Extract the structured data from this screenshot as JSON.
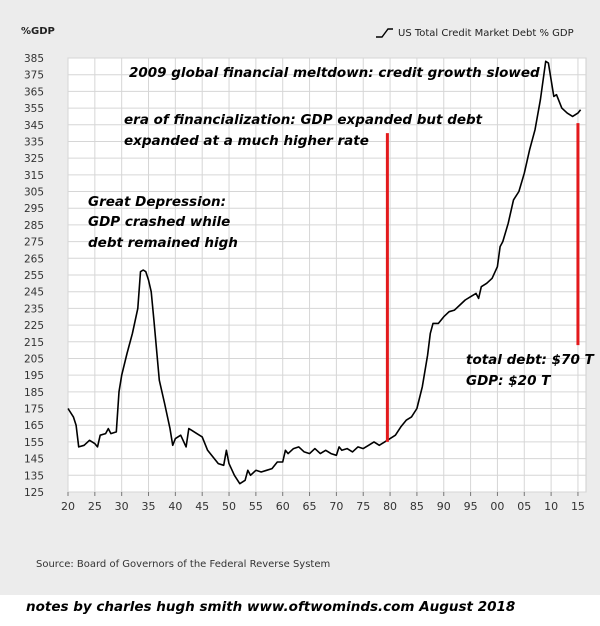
{
  "chart_data": {
    "type": "line",
    "ylabel": "%GDP",
    "ylim": [
      125,
      385
    ],
    "y_ticks": [
      125,
      135,
      145,
      155,
      165,
      175,
      185,
      195,
      205,
      215,
      225,
      235,
      245,
      255,
      265,
      275,
      285,
      295,
      305,
      315,
      325,
      335,
      345,
      355,
      365,
      375,
      385
    ],
    "x_ticks": [
      1920,
      1925,
      1930,
      1935,
      1940,
      1945,
      1950,
      1955,
      1960,
      1965,
      1970,
      1975,
      1980,
      1985,
      1990,
      1995,
      2000,
      2005,
      2010,
      2015
    ],
    "x_tick_labels": [
      "20",
      "25",
      "30",
      "35",
      "40",
      "45",
      "50",
      "55",
      "60",
      "65",
      "70",
      "75",
      "80",
      "85",
      "90",
      "95",
      "00",
      "05",
      "10",
      "15"
    ],
    "xlim": [
      1920,
      2016.5
    ],
    "grid": true,
    "legend_position": "top-right",
    "series": [
      {
        "name": "US Total Credit Market Debt % GDP",
        "color": "#000000",
        "points": [
          [
            1920,
            175
          ],
          [
            1921,
            170
          ],
          [
            1921.5,
            165
          ],
          [
            1922,
            152
          ],
          [
            1923,
            153
          ],
          [
            1924,
            156
          ],
          [
            1925,
            154
          ],
          [
            1925.5,
            152
          ],
          [
            1926,
            159
          ],
          [
            1927,
            160
          ],
          [
            1927.5,
            163
          ],
          [
            1928,
            160
          ],
          [
            1929,
            161
          ],
          [
            1929.5,
            185
          ],
          [
            1930,
            195
          ],
          [
            1931,
            208
          ],
          [
            1932,
            220
          ],
          [
            1933,
            235
          ],
          [
            1933.5,
            257
          ],
          [
            1934,
            258
          ],
          [
            1934.5,
            257
          ],
          [
            1935,
            252
          ],
          [
            1935.5,
            245
          ],
          [
            1936,
            228
          ],
          [
            1937,
            192
          ],
          [
            1938,
            178
          ],
          [
            1939,
            163
          ],
          [
            1939.5,
            153
          ],
          [
            1940,
            157
          ],
          [
            1941,
            159
          ],
          [
            1942,
            152
          ],
          [
            1942.5,
            163
          ],
          [
            1943,
            162
          ],
          [
            1944,
            160
          ],
          [
            1945,
            158
          ],
          [
            1946,
            150
          ],
          [
            1947,
            146
          ],
          [
            1948,
            142
          ],
          [
            1949,
            141
          ],
          [
            1949.5,
            150
          ],
          [
            1950,
            142
          ],
          [
            1951,
            135
          ],
          [
            1952,
            130
          ],
          [
            1953,
            132
          ],
          [
            1953.5,
            138
          ],
          [
            1954,
            135
          ],
          [
            1955,
            138
          ],
          [
            1956,
            137
          ],
          [
            1957,
            138
          ],
          [
            1958,
            139
          ],
          [
            1959,
            143
          ],
          [
            1960,
            143
          ],
          [
            1960.5,
            150
          ],
          [
            1961,
            148
          ],
          [
            1962,
            151
          ],
          [
            1963,
            152
          ],
          [
            1964,
            149
          ],
          [
            1965,
            148
          ],
          [
            1966,
            151
          ],
          [
            1967,
            148
          ],
          [
            1968,
            150
          ],
          [
            1969,
            148
          ],
          [
            1970,
            147
          ],
          [
            1970.5,
            152
          ],
          [
            1971,
            150
          ],
          [
            1972,
            151
          ],
          [
            1973,
            149
          ],
          [
            1974,
            152
          ],
          [
            1975,
            151
          ],
          [
            1976,
            153
          ],
          [
            1977,
            155
          ],
          [
            1978,
            153
          ],
          [
            1979,
            155
          ],
          [
            1980,
            157
          ],
          [
            1981,
            159
          ],
          [
            1982,
            164
          ],
          [
            1983,
            168
          ],
          [
            1984,
            170
          ],
          [
            1985,
            175
          ],
          [
            1986,
            188
          ],
          [
            1987,
            207
          ],
          [
            1987.5,
            220
          ],
          [
            1988,
            226
          ],
          [
            1989,
            226
          ],
          [
            1990,
            230
          ],
          [
            1991,
            233
          ],
          [
            1992,
            234
          ],
          [
            1993,
            237
          ],
          [
            1994,
            240
          ],
          [
            1995,
            242
          ],
          [
            1996,
            244
          ],
          [
            1996.5,
            241
          ],
          [
            1997,
            248
          ],
          [
            1998,
            250
          ],
          [
            1999,
            253
          ],
          [
            2000,
            260
          ],
          [
            2000.5,
            272
          ],
          [
            2001,
            275
          ],
          [
            2002,
            286
          ],
          [
            2003,
            300
          ],
          [
            2004,
            305
          ],
          [
            2005,
            316
          ],
          [
            2006,
            330
          ],
          [
            2007,
            342
          ],
          [
            2008,
            360
          ],
          [
            2009,
            383
          ],
          [
            2009.5,
            382
          ],
          [
            2010,
            372
          ],
          [
            2010.5,
            362
          ],
          [
            2011,
            363
          ],
          [
            2012,
            355
          ],
          [
            2013,
            352
          ],
          [
            2014,
            350
          ],
          [
            2015,
            352
          ],
          [
            2015.5,
            354
          ]
        ]
      }
    ],
    "red_lines": [
      {
        "x": 1979.5,
        "y_from": 155,
        "y_to": 340,
        "color": "#e31a1c"
      },
      {
        "x": 2015,
        "y_from": 213,
        "y_to": 346,
        "color": "#e31a1c"
      }
    ],
    "annotations": [
      {
        "lines": [
          "2009 global financial meltdown: credit growth slowed"
        ]
      },
      {
        "lines": [
          "era of financialization: GDP expanded but debt",
          "expanded at a much higher rate"
        ]
      },
      {
        "lines": [
          "Great Depression:",
          "GDP crashed while",
          "debt remained high"
        ]
      },
      {
        "lines": [
          "total debt: $70 T",
          "GDP: $20 T"
        ]
      }
    ],
    "source": "Source: Board of Governors of the Federal Reverse System"
  },
  "footer": "notes by charles hugh smith   www.oftwominds.com  August 2018"
}
